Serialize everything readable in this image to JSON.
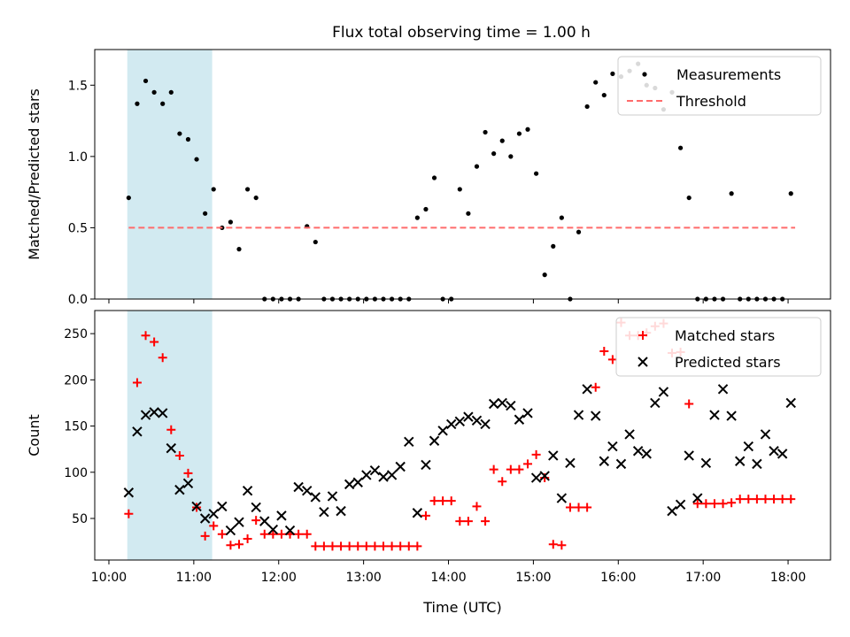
{
  "figure": {
    "title": "Flux total observing time = 1.00 h"
  },
  "colors": {
    "shade": "#add8e6",
    "threshold": "#ff6b6b",
    "matched": "#ff0000",
    "predicted": "#000000",
    "measurements": "#000000"
  },
  "chart_data": [
    {
      "type": "scatter",
      "ylabel": "Matched/Predicted stars",
      "ylim": [
        0,
        1.75
      ],
      "yticks": [
        0.0,
        0.5,
        1.0,
        1.5
      ],
      "ytick_labels": [
        "0.0",
        "0.5",
        "1.0",
        "1.5"
      ],
      "xlim": [
        "09:50",
        "18:30"
      ],
      "shaded_interval": [
        "10:13",
        "11:13"
      ],
      "legend_position": "upper right",
      "series": [
        {
          "name": "Measurements",
          "marker": "dot",
          "x": [
            "10:14",
            "10:20",
            "10:26",
            "10:32",
            "10:38",
            "10:44",
            "10:50",
            "10:56",
            "11:02",
            "11:08",
            "11:14",
            "11:20",
            "11:26",
            "11:32",
            "11:38",
            "11:44",
            "11:50",
            "11:56",
            "12:02",
            "12:08",
            "12:14",
            "12:20",
            "12:26",
            "12:32",
            "12:38",
            "12:44",
            "12:50",
            "12:56",
            "13:02",
            "13:08",
            "13:14",
            "13:20",
            "13:26",
            "13:32",
            "13:38",
            "13:44",
            "13:50",
            "13:56",
            "14:02",
            "14:08",
            "14:14",
            "14:20",
            "14:26",
            "14:32",
            "14:38",
            "14:44",
            "14:50",
            "14:56",
            "15:02",
            "15:08",
            "15:14",
            "15:20",
            "15:26",
            "15:32",
            "15:38",
            "15:44",
            "15:50",
            "15:56",
            "16:02",
            "16:08",
            "16:14",
            "16:20",
            "16:26",
            "16:32",
            "16:38",
            "16:44",
            "16:50",
            "16:56",
            "17:02",
            "17:08",
            "17:14",
            "17:20",
            "17:26",
            "17:32",
            "17:38",
            "17:44",
            "17:50",
            "17:56",
            "18:02"
          ],
          "y": [
            0.71,
            1.37,
            1.53,
            1.45,
            1.37,
            1.45,
            1.16,
            1.12,
            0.98,
            0.6,
            0.77,
            0.5,
            0.54,
            0.35,
            0.77,
            0.71,
            0.0,
            0.0,
            0.0,
            0.0,
            0.0,
            0.51,
            0.4,
            0.0,
            0.0,
            0.0,
            0.0,
            0.0,
            0.0,
            0.0,
            0.0,
            0.0,
            0.0,
            0.0,
            0.57,
            0.63,
            0.85,
            0.0,
            0.0,
            0.77,
            0.6,
            0.93,
            1.17,
            1.02,
            1.11,
            1.0,
            1.16,
            1.19,
            0.88,
            0.17,
            0.37,
            0.57,
            0.0,
            0.47,
            1.35,
            1.52,
            1.43,
            1.58,
            1.56,
            1.6,
            1.65,
            1.5,
            1.48,
            1.33,
            1.45,
            1.06,
            0.71,
            0.0,
            0.0,
            0.0,
            0.0,
            0.74,
            0.0,
            0.0,
            0.0,
            0.0,
            0.0,
            0.0,
            0.74
          ]
        },
        {
          "name": "Threshold",
          "line": "dashed",
          "x": [
            "10:14",
            "18:05"
          ],
          "y": [
            0.5,
            0.5
          ]
        }
      ]
    },
    {
      "type": "scatter",
      "xlabel": "Time (UTC)",
      "ylabel": "Count",
      "ylim": [
        5,
        275
      ],
      "yticks": [
        50,
        100,
        150,
        200,
        250
      ],
      "ytick_labels": [
        "50",
        "100",
        "150",
        "200",
        "250"
      ],
      "xlim": [
        "09:50",
        "18:30"
      ],
      "xticks": [
        "10:00",
        "11:00",
        "12:00",
        "13:00",
        "14:00",
        "15:00",
        "16:00",
        "17:00",
        "18:00"
      ],
      "xtick_labels": [
        "10:00",
        "11:00",
        "12:00",
        "13:00",
        "14:00",
        "15:00",
        "16:00",
        "17:00",
        "18:00"
      ],
      "shaded_interval": [
        "10:13",
        "11:13"
      ],
      "legend_position": "upper right",
      "series": [
        {
          "name": "Matched stars",
          "marker": "plus",
          "x": [
            "10:14",
            "10:20",
            "10:26",
            "10:32",
            "10:38",
            "10:44",
            "10:50",
            "10:56",
            "11:02",
            "11:08",
            "11:14",
            "11:20",
            "11:26",
            "11:32",
            "11:38",
            "11:44",
            "11:50",
            "11:56",
            "12:02",
            "12:08",
            "12:14",
            "12:20",
            "12:26",
            "12:32",
            "12:38",
            "12:44",
            "12:50",
            "12:56",
            "13:02",
            "13:08",
            "13:14",
            "13:20",
            "13:26",
            "13:32",
            "13:38",
            "13:44",
            "13:50",
            "13:56",
            "14:02",
            "14:08",
            "14:14",
            "14:20",
            "14:26",
            "14:32",
            "14:38",
            "14:44",
            "14:50",
            "14:56",
            "15:02",
            "15:08",
            "15:14",
            "15:20",
            "15:26",
            "15:32",
            "15:38",
            "15:44",
            "15:50",
            "15:56",
            "16:02",
            "16:08",
            "16:14",
            "16:20",
            "16:26",
            "16:32",
            "16:38",
            "16:44",
            "16:50",
            "16:56",
            "17:02",
            "17:08",
            "17:14",
            "17:20",
            "17:26",
            "17:32",
            "17:38",
            "17:44",
            "17:50",
            "17:56",
            "18:02"
          ],
          "y": [
            55,
            197,
            248,
            241,
            224,
            146,
            118,
            99,
            62,
            31,
            42,
            33,
            21,
            22,
            28,
            48,
            33,
            33,
            33,
            33,
            33,
            33,
            20,
            20,
            20,
            20,
            20,
            20,
            20,
            20,
            20,
            20,
            20,
            20,
            20,
            53,
            69,
            69,
            69,
            47,
            47,
            63,
            47,
            103,
            90,
            103,
            103,
            109,
            119,
            94,
            22,
            21,
            62,
            62,
            62,
            192,
            231,
            222,
            262,
            248,
            248,
            251,
            258,
            261,
            229,
            230,
            174,
            66,
            66,
            66,
            66,
            67,
            71,
            71,
            71,
            71,
            71,
            71,
            71
          ]
        },
        {
          "name": "Predicted stars",
          "marker": "x",
          "x": [
            "10:14",
            "10:20",
            "10:26",
            "10:32",
            "10:38",
            "10:44",
            "10:50",
            "10:56",
            "11:02",
            "11:08",
            "11:14",
            "11:20",
            "11:26",
            "11:32",
            "11:38",
            "11:44",
            "11:50",
            "11:56",
            "12:02",
            "12:08",
            "12:14",
            "12:20",
            "12:26",
            "12:32",
            "12:38",
            "12:44",
            "12:50",
            "12:56",
            "13:02",
            "13:08",
            "13:14",
            "13:20",
            "13:26",
            "13:32",
            "13:38",
            "13:44",
            "13:50",
            "13:56",
            "14:02",
            "14:08",
            "14:14",
            "14:20",
            "14:26",
            "14:32",
            "14:38",
            "14:44",
            "14:50",
            "14:56",
            "15:02",
            "15:08",
            "15:14",
            "15:20",
            "15:26",
            "15:32",
            "15:38",
            "15:44",
            "15:50",
            "15:56",
            "16:02",
            "16:08",
            "16:14",
            "16:20",
            "16:26",
            "16:32",
            "16:38",
            "16:44",
            "16:50",
            "16:56",
            "17:02",
            "17:08",
            "17:14",
            "17:20",
            "17:26",
            "17:32",
            "17:38",
            "17:44",
            "17:50",
            "17:56",
            "18:02"
          ],
          "y": [
            78,
            144,
            162,
            165,
            164,
            126,
            81,
            88,
            63,
            50,
            55,
            63,
            37,
            46,
            80,
            62,
            47,
            38,
            53,
            37,
            84,
            80,
            73,
            57,
            74,
            58,
            87,
            89,
            97,
            102,
            95,
            97,
            106,
            133,
            56,
            108,
            134,
            145,
            152,
            155,
            160,
            156,
            152,
            174,
            175,
            172,
            157,
            164,
            94,
            96,
            118,
            72,
            110,
            162,
            190,
            161,
            112,
            128,
            109,
            141,
            123,
            120,
            175,
            187,
            58,
            65,
            118,
            72,
            110,
            162,
            190,
            161,
            112,
            128,
            109,
            141,
            123,
            120,
            175
          ]
        }
      ]
    }
  ]
}
